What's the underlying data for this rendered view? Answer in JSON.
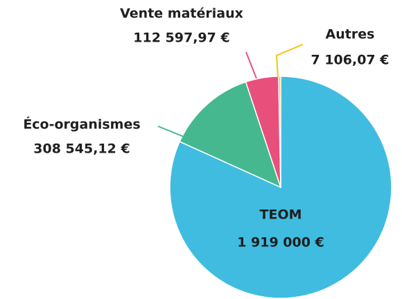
{
  "chart_data": {
    "type": "pie",
    "categories": [
      "TEOM",
      "Éco-organismes",
      "Vente matériaux",
      "Autres"
    ],
    "values": [
      1919000,
      308545.12,
      112597.97,
      7106.07
    ],
    "value_labels": [
      "1 919 000 €",
      "308 545,12 €",
      "112 597,97 €",
      "7 106,07 €"
    ],
    "colors": [
      "#40bce0",
      "#46b88f",
      "#e8507b",
      "#f5c30f"
    ]
  }
}
